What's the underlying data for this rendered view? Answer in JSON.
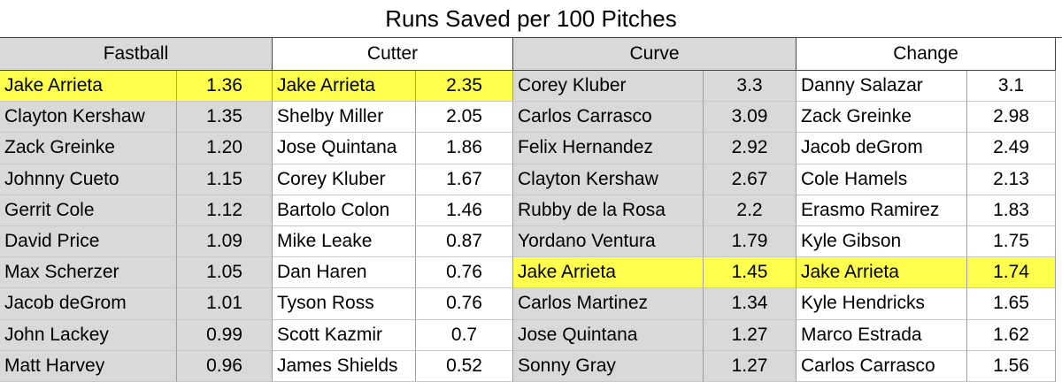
{
  "table": {
    "title": "Runs Saved per 100 Pitches",
    "highlight_color": "#ffff4d",
    "groups": [
      {
        "name": "Fastball",
        "color": "#d9d9d9",
        "highlight_row": 0,
        "rows": [
          [
            "Jake Arrieta",
            "1.36"
          ],
          [
            "Clayton Kershaw",
            "1.35"
          ],
          [
            "Zack Greinke",
            "1.20"
          ],
          [
            "Johnny Cueto",
            "1.15"
          ],
          [
            "Gerrit Cole",
            "1.12"
          ],
          [
            "David Price",
            "1.09"
          ],
          [
            "Max Scherzer",
            "1.05"
          ],
          [
            "Jacob deGrom",
            "1.01"
          ],
          [
            "John Lackey",
            "0.99"
          ],
          [
            "Matt Harvey",
            "0.96"
          ]
        ]
      },
      {
        "name": "Cutter",
        "color": "#ffffff",
        "highlight_row": 0,
        "rows": [
          [
            "Jake Arrieta",
            "2.35"
          ],
          [
            "Shelby Miller",
            "2.05"
          ],
          [
            "Jose Quintana",
            "1.86"
          ],
          [
            "Corey Kluber",
            "1.67"
          ],
          [
            "Bartolo Colon",
            "1.46"
          ],
          [
            "Mike Leake",
            "0.87"
          ],
          [
            "Dan Haren",
            "0.76"
          ],
          [
            "Tyson Ross",
            "0.76"
          ],
          [
            "Scott Kazmir",
            "0.7"
          ],
          [
            "James Shields",
            "0.52"
          ]
        ]
      },
      {
        "name": "Curve",
        "color": "#d9d9d9",
        "highlight_row": 6,
        "rows": [
          [
            "Corey Kluber",
            "3.3"
          ],
          [
            "Carlos Carrasco",
            "3.09"
          ],
          [
            "Felix Hernandez",
            "2.92"
          ],
          [
            "Clayton Kershaw",
            "2.67"
          ],
          [
            "Rubby de la Rosa",
            "2.2"
          ],
          [
            "Yordano Ventura",
            "1.79"
          ],
          [
            "Jake Arrieta",
            "1.45"
          ],
          [
            "Carlos Martinez",
            "1.34"
          ],
          [
            "Jose Quintana",
            "1.27"
          ],
          [
            "Sonny Gray",
            "1.27"
          ]
        ]
      },
      {
        "name": "Change",
        "color": "#ffffff",
        "highlight_row": 6,
        "rows": [
          [
            "Danny Salazar",
            "3.1"
          ],
          [
            "Zack Greinke",
            "2.98"
          ],
          [
            "Jacob deGrom",
            "2.49"
          ],
          [
            "Cole Hamels",
            "2.13"
          ],
          [
            "Erasmo Ramirez",
            "1.83"
          ],
          [
            "Kyle Gibson",
            "1.75"
          ],
          [
            "Jake Arrieta",
            "1.74"
          ],
          [
            "Kyle Hendricks",
            "1.65"
          ],
          [
            "Marco Estrada",
            "1.62"
          ],
          [
            "Carlos Carrasco",
            "1.56"
          ]
        ]
      }
    ]
  }
}
